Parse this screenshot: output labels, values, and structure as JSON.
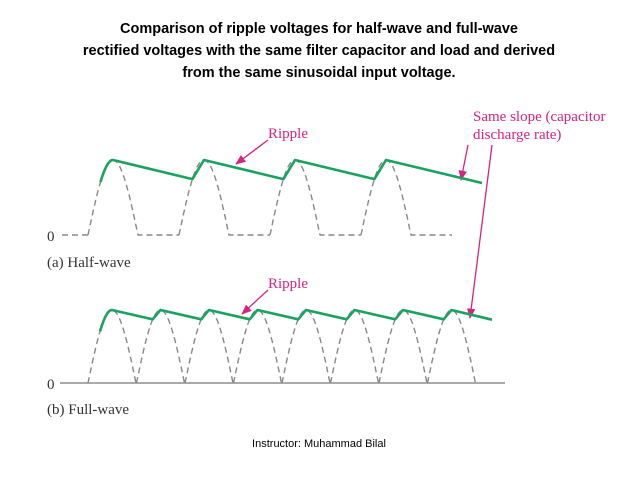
{
  "title": {
    "lines": [
      "Comparison of ripple voltages for half-wave and full-wave",
      "rectified voltages with the same filter capacitor and load and derived",
      "from the same sinusoidal input voltage."
    ]
  },
  "panels": [
    {
      "annotation": "Ripple",
      "zero_label": "0",
      "caption": "(a) Half-wave"
    },
    {
      "annotation": "Ripple",
      "zero_label": "0",
      "caption": "(b) Full-wave"
    }
  ],
  "shared_annotation": {
    "lines": [
      "Same slope (capacitor",
      "discharge rate)"
    ]
  },
  "footer": "Instructor: Muhammad Bilal"
}
